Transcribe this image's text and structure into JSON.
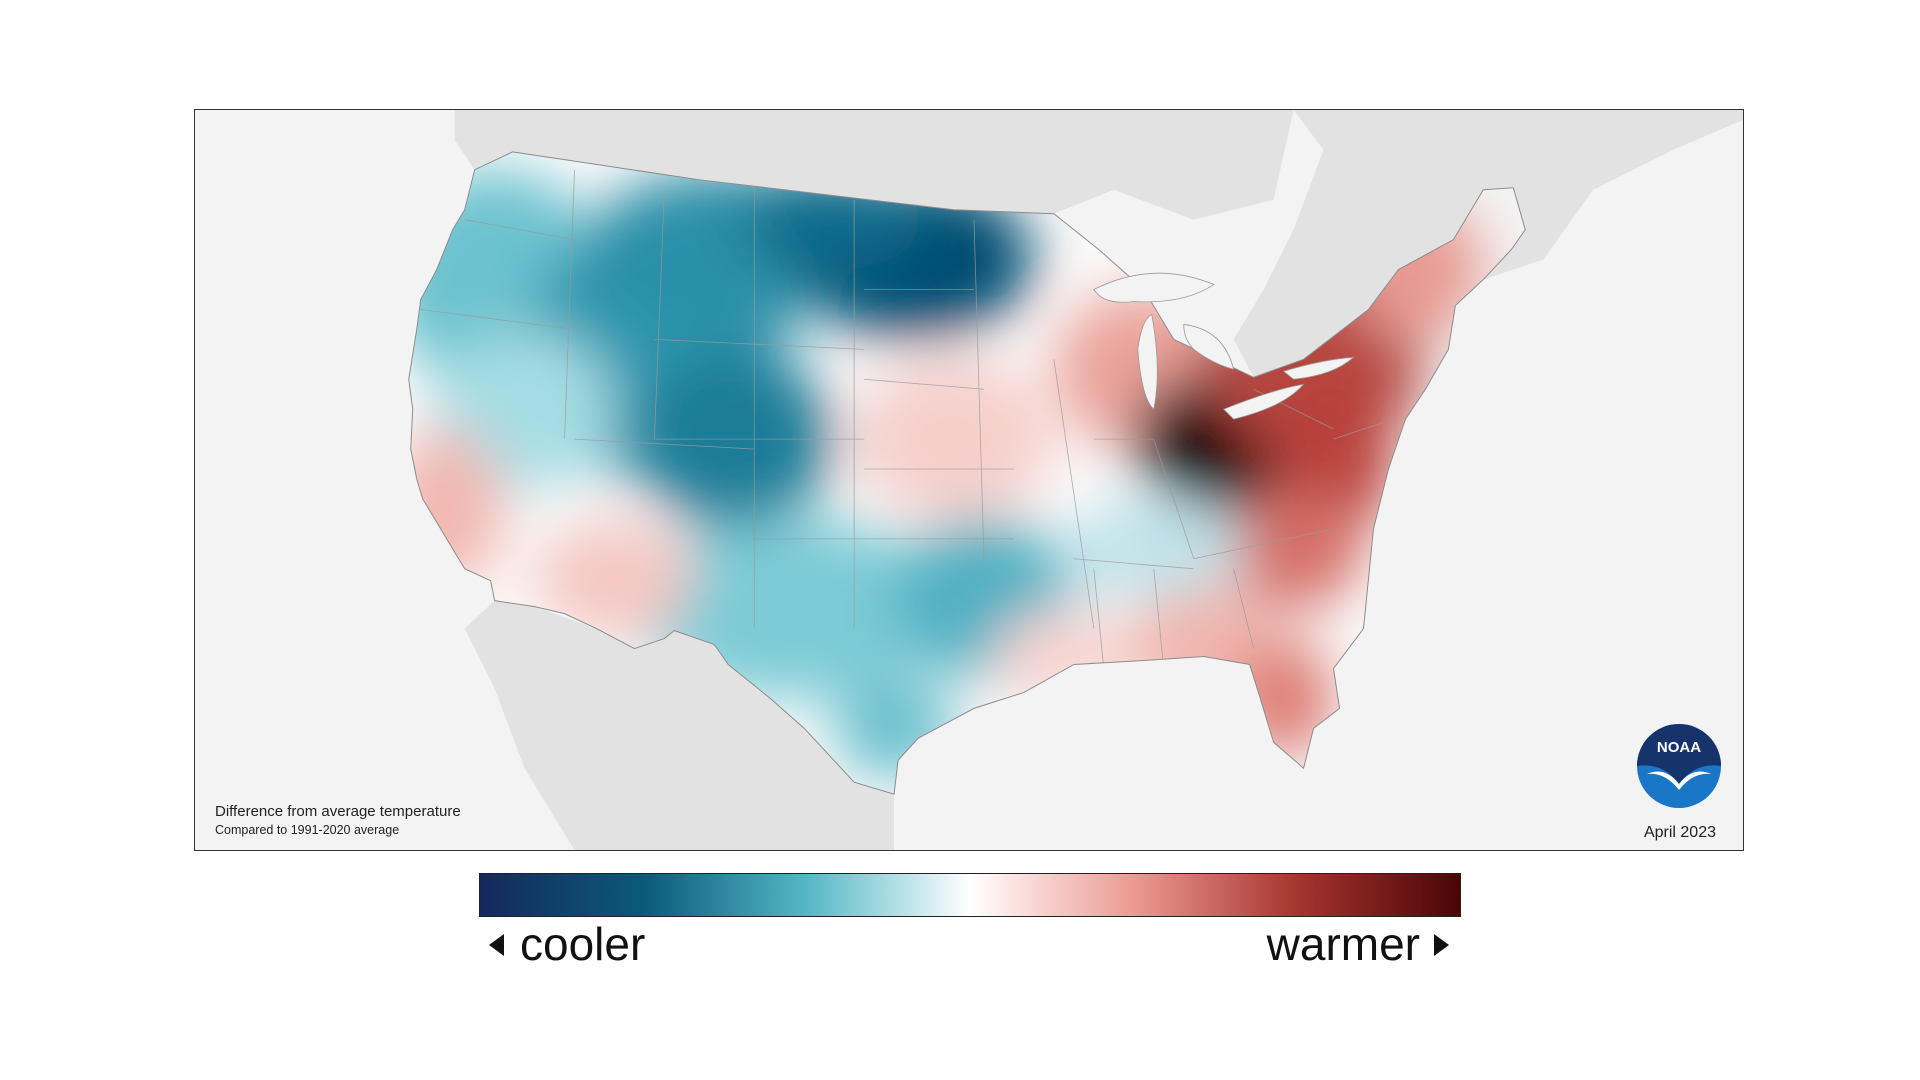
{
  "map": {
    "caption_title": "Difference from average temperature",
    "caption_subtitle": "Compared to 1991-2020 average",
    "date": "April 2023",
    "logo_text": "NOAA",
    "background_color": "#f3f3f3",
    "land_outside_color": "#e2e2e2"
  },
  "legend": {
    "cooler_label": "cooler",
    "warmer_label": "warmer",
    "colors": [
      "#16285e",
      "#0a5a7a",
      "#55b7c6",
      "#ffffff",
      "#ec9a92",
      "#a7342f",
      "#4a0607"
    ]
  }
}
